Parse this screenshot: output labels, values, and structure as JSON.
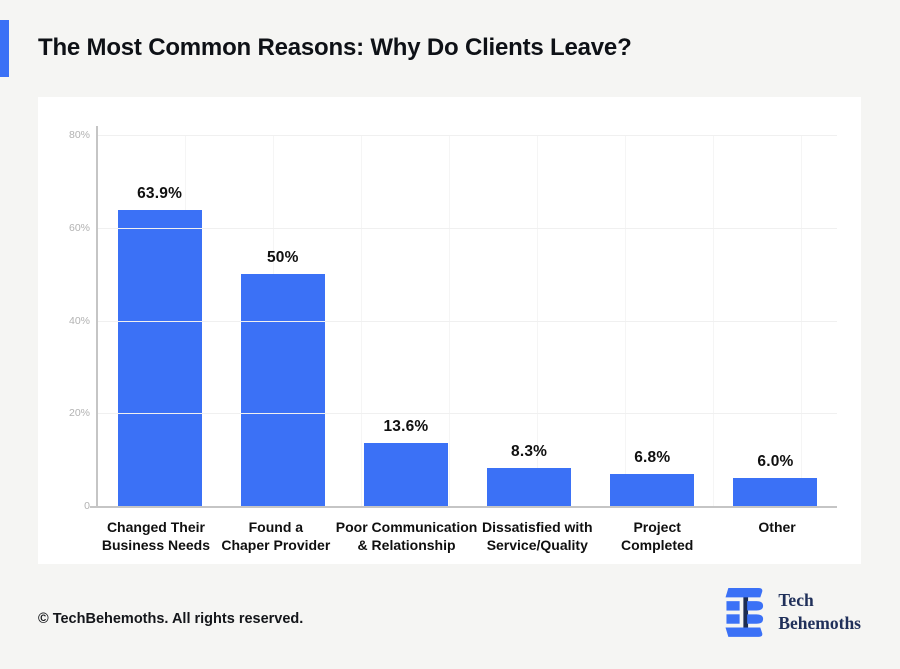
{
  "page": {
    "background": "#f5f5f3",
    "accent_color": "#3b71f6",
    "panel_color": "#ffffff"
  },
  "header": {
    "title": "The Most Common Reasons: Why Do Clients Leave?"
  },
  "chart_data": {
    "type": "bar",
    "title": "The Most Common Reasons: Why Do Clients Leave?",
    "categories": [
      "Changed Their\nBusiness Needs",
      "Found a\nChaper Provider",
      "Poor Communication\n& Relationship",
      "Dissatisfied with\nService/Quality",
      "Project\nCompleted",
      "Other"
    ],
    "values": [
      63.9,
      50,
      13.6,
      8.3,
      6.8,
      6.0
    ],
    "value_labels": [
      "63.9%",
      "50%",
      "13.6%",
      "8.3%",
      "6.8%",
      "6.0%"
    ],
    "xlabel": "",
    "ylabel": "",
    "ylim": [
      0,
      80
    ],
    "y_ticks": [
      {
        "label": "80%",
        "value": 80
      },
      {
        "label": "60%",
        "value": 60
      },
      {
        "label": "40%",
        "value": 40
      },
      {
        "label": "20%",
        "value": 20
      },
      {
        "label": "0",
        "value": 0
      }
    ],
    "grid": true,
    "legend_position": "none",
    "bar_color": "#3b71f6",
    "axis_color": "#c5c5c5",
    "tick_label_color": "#b2b2b2",
    "value_label_color": "#101010"
  },
  "footer": {
    "copyright": "© TechBehemoths. All rights reserved.",
    "logo": {
      "name": "techbehemoths-logo",
      "line1": "Tech",
      "line2": "Behemoths",
      "mark_blue": "#3b71f6",
      "mark_navy": "#1d2d52"
    }
  }
}
